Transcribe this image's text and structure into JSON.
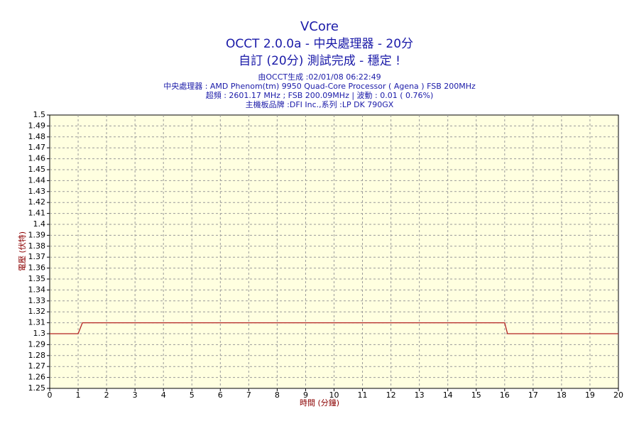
{
  "chart_data": {
    "type": "line",
    "title": "VCore",
    "subtitle": "OCCT 2.0.0a - 中央處理器 - 20分",
    "status": "自訂 (20分) 測試完成 - 穩定 !",
    "info": [
      "由OCCT生成 :02/01/08 06:22:49",
      "中央處理器 : AMD Phenom(tm) 9950 Quad-Core Processor ( Agena ) FSB 200MHz",
      "超頻 : 2601.17 MHz ; FSB 200.09MHz | 波動 : 0.01 ( 0.76%)",
      "主機板品牌 :DFI Inc.,系列 :LP DK 790GX"
    ],
    "x_label": "時間 (分鐘)",
    "y_label": "電壓 (伏特)",
    "x": [
      0,
      1,
      1.15,
      16,
      16.1,
      20
    ],
    "series": [
      {
        "name": "VCore",
        "color": "#b22222",
        "values": [
          1.3,
          1.3,
          1.31,
          1.31,
          1.3,
          1.3
        ]
      }
    ],
    "xlim": [
      0,
      20
    ],
    "xticks": [
      0,
      1,
      2,
      3,
      4,
      5,
      6,
      7,
      8,
      9,
      10,
      11,
      12,
      13,
      14,
      15,
      16,
      17,
      18,
      19,
      20
    ],
    "ylim": [
      1.25,
      1.5
    ],
    "yticks": [
      1.25,
      1.26,
      1.27,
      1.28,
      1.29,
      1.3,
      1.31,
      1.32,
      1.33,
      1.34,
      1.35,
      1.36,
      1.37,
      1.38,
      1.39,
      1.4,
      1.41,
      1.42,
      1.43,
      1.44,
      1.45,
      1.46,
      1.47,
      1.48,
      1.49,
      1.5
    ],
    "grid": true
  }
}
